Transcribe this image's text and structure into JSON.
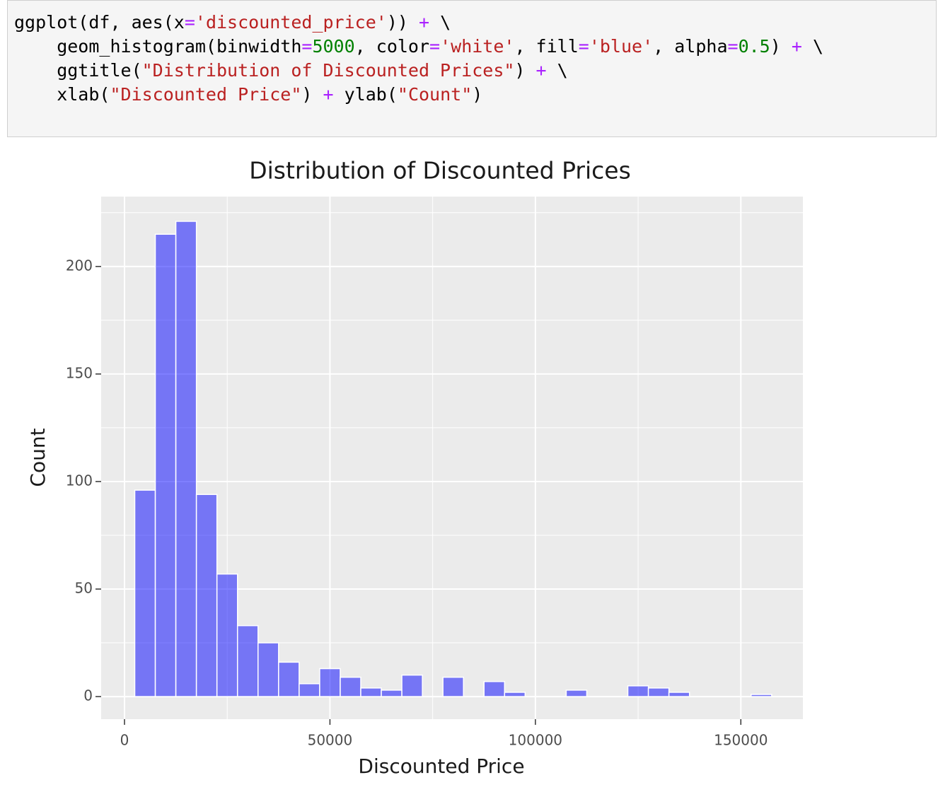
{
  "code": {
    "lines": [
      [
        {
          "text": "ggplot(df, aes(x",
          "color": "#000000"
        },
        {
          "text": "=",
          "color": "#aa22ff"
        },
        {
          "text": "'discounted_price'",
          "color": "#ba2121"
        },
        {
          "text": ")) ",
          "color": "#000000"
        },
        {
          "text": "+",
          "color": "#aa22ff"
        },
        {
          "text": " \\",
          "color": "#000000"
        }
      ],
      [
        {
          "text": "    geom_histogram(binwidth",
          "color": "#000000"
        },
        {
          "text": "=",
          "color": "#aa22ff"
        },
        {
          "text": "5000",
          "color": "#008000"
        },
        {
          "text": ", color",
          "color": "#000000"
        },
        {
          "text": "=",
          "color": "#aa22ff"
        },
        {
          "text": "'white'",
          "color": "#ba2121"
        },
        {
          "text": ", fill",
          "color": "#000000"
        },
        {
          "text": "=",
          "color": "#aa22ff"
        },
        {
          "text": "'blue'",
          "color": "#ba2121"
        },
        {
          "text": ", alpha",
          "color": "#000000"
        },
        {
          "text": "=",
          "color": "#aa22ff"
        },
        {
          "text": "0.5",
          "color": "#008000"
        },
        {
          "text": ") ",
          "color": "#000000"
        },
        {
          "text": "+",
          "color": "#aa22ff"
        },
        {
          "text": " \\",
          "color": "#000000"
        }
      ],
      [
        {
          "text": "    ggtitle(",
          "color": "#000000"
        },
        {
          "text": "\"Distribution of Discounted Prices\"",
          "color": "#ba2121"
        },
        {
          "text": ") ",
          "color": "#000000"
        },
        {
          "text": "+",
          "color": "#aa22ff"
        },
        {
          "text": " \\",
          "color": "#000000"
        }
      ],
      [
        {
          "text": "    xlab(",
          "color": "#000000"
        },
        {
          "text": "\"Discounted Price\"",
          "color": "#ba2121"
        },
        {
          "text": ") ",
          "color": "#000000"
        },
        {
          "text": "+",
          "color": "#aa22ff"
        },
        {
          "text": " ylab(",
          "color": "#000000"
        },
        {
          "text": "\"Count\"",
          "color": "#ba2121"
        },
        {
          "text": ")",
          "color": "#000000"
        }
      ]
    ]
  },
  "chart_data": {
    "type": "histogram",
    "title": "Distribution of Discounted Prices",
    "xlabel": "Discounted Price",
    "ylabel": "Count",
    "bins": [
      2500,
      7500,
      12500,
      17500,
      22500,
      27500,
      32500,
      37500,
      42500,
      47500,
      52500,
      57500,
      62500,
      67500,
      72500,
      77500,
      82500,
      87500,
      92500,
      97500,
      102500,
      107500,
      112500,
      117500,
      122500,
      127500,
      132500,
      137500,
      142500,
      147500,
      152500,
      157500
    ],
    "values": [
      96,
      215,
      221,
      94,
      57,
      33,
      25,
      16,
      6,
      13,
      9,
      4,
      3,
      10,
      0,
      9,
      0,
      7,
      2,
      0,
      0,
      3,
      0,
      0,
      5,
      4,
      2,
      0,
      0,
      0,
      1
    ],
    "color": "blue",
    "alpha": 0.5,
    "edgecolor": "white",
    "xlim": [
      -5680,
      165100
    ],
    "ylim": [
      -10.5,
      232.5
    ],
    "xticks": [
      0,
      50000,
      100000,
      150000
    ],
    "yticks": [
      0,
      50,
      100,
      150,
      200
    ],
    "xminor": [
      25000,
      75000,
      125000
    ],
    "yminor": [
      25,
      75,
      125,
      175,
      225
    ],
    "grid": true
  }
}
